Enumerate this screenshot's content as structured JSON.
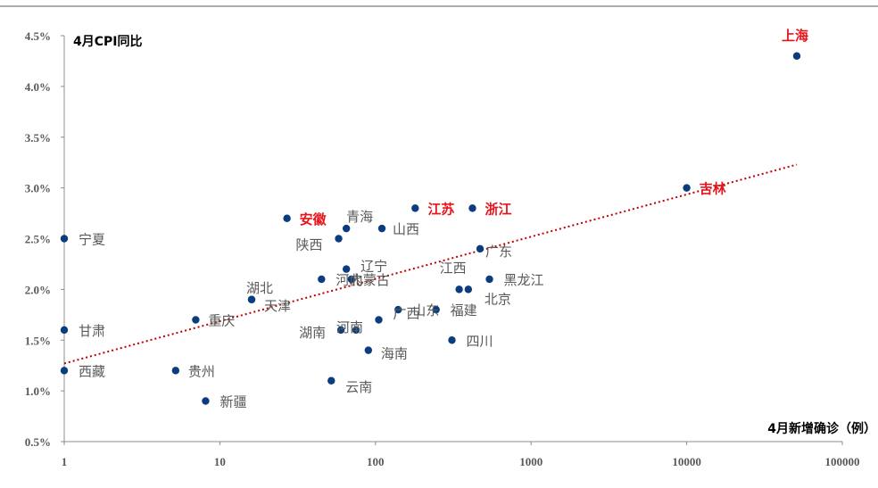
{
  "chart_data": {
    "type": "scatter",
    "title": "",
    "title_partial": "",
    "xlabel": "4月新增确诊（例）",
    "ylabel": "4月CPI同比",
    "x_scale": "log",
    "xlim": [
      1,
      100000
    ],
    "ylim": [
      0.005,
      0.045
    ],
    "x_ticks": [
      1,
      10,
      100,
      1000,
      10000,
      100000
    ],
    "x_tick_labels": [
      "1",
      "10",
      "100",
      "1000",
      "10000",
      "100000"
    ],
    "y_ticks": [
      0.005,
      0.01,
      0.015,
      0.02,
      0.025,
      0.03,
      0.035,
      0.04,
      0.045
    ],
    "y_tick_labels": [
      "0.5%",
      "1.0%",
      "1.5%",
      "2.0%",
      "2.5%",
      "3.0%",
      "3.5%",
      "4.0%",
      "4.5%"
    ],
    "grid": false,
    "marker_color": "#0b3d7e",
    "trendline": {
      "type": "log-linear",
      "style": "dotted",
      "color": "#c00000",
      "x_range": [
        1,
        51000
      ],
      "y_at_start": 0.0127,
      "y_at_end": 0.0323
    },
    "points": [
      {
        "label": "上海",
        "x": 51000,
        "y": 0.043,
        "highlight": true
      },
      {
        "label": "吉林",
        "x": 10000,
        "y": 0.03,
        "highlight": true
      },
      {
        "label": "浙江",
        "x": 420,
        "y": 0.028,
        "highlight": true
      },
      {
        "label": "江苏",
        "x": 180,
        "y": 0.028,
        "highlight": true
      },
      {
        "label": "安徽",
        "x": 27,
        "y": 0.027,
        "highlight": true
      },
      {
        "label": "青海",
        "x": 65,
        "y": 0.026,
        "highlight": false
      },
      {
        "label": "山西",
        "x": 110,
        "y": 0.026,
        "highlight": false
      },
      {
        "label": "陕西",
        "x": 58,
        "y": 0.025,
        "highlight": false
      },
      {
        "label": "宁夏",
        "x": 1,
        "y": 0.025,
        "highlight": false
      },
      {
        "label": "广东",
        "x": 470,
        "y": 0.024,
        "highlight": false
      },
      {
        "label": "辽宁",
        "x": 65,
        "y": 0.022,
        "highlight": false
      },
      {
        "label": "河北",
        "x": 45,
        "y": 0.021,
        "highlight": false
      },
      {
        "label": "内蒙古",
        "x": 70,
        "y": 0.021,
        "highlight": false
      },
      {
        "label": "黑龙江",
        "x": 540,
        "y": 0.021,
        "highlight": false
      },
      {
        "label": "江西",
        "x": 345,
        "y": 0.02,
        "highlight": false
      },
      {
        "label": "北京",
        "x": 395,
        "y": 0.02,
        "highlight": false
      },
      {
        "label": "湖北",
        "x": 16,
        "y": 0.019,
        "highlight": false
      },
      {
        "label": "天津",
        "x": 16,
        "y": 0.019,
        "highlight": false
      },
      {
        "label": "山东",
        "x": 140,
        "y": 0.018,
        "highlight": false
      },
      {
        "label": "福建",
        "x": 245,
        "y": 0.018,
        "highlight": false
      },
      {
        "label": "重庆",
        "x": 7,
        "y": 0.017,
        "highlight": false
      },
      {
        "label": "广西",
        "x": 105,
        "y": 0.017,
        "highlight": false
      },
      {
        "label": "湖南",
        "x": 60,
        "y": 0.016,
        "highlight": false
      },
      {
        "label": "河南",
        "x": 75,
        "y": 0.016,
        "highlight": false
      },
      {
        "label": "甘肃",
        "x": 1,
        "y": 0.016,
        "highlight": false
      },
      {
        "label": "四川",
        "x": 310,
        "y": 0.015,
        "highlight": false
      },
      {
        "label": "海南",
        "x": 90,
        "y": 0.014,
        "highlight": false
      },
      {
        "label": "西藏",
        "x": 1,
        "y": 0.012,
        "highlight": false
      },
      {
        "label": "贵州",
        "x": 5.2,
        "y": 0.012,
        "highlight": false
      },
      {
        "label": "云南",
        "x": 52,
        "y": 0.011,
        "highlight": false
      },
      {
        "label": "新疆",
        "x": 8.1,
        "y": 0.009,
        "highlight": false
      }
    ]
  },
  "colors": {
    "marker": "#0b3d7e",
    "highlight_label": "#e8141b",
    "normal_label": "#595959",
    "axis": "#8c8c8c",
    "trend": "#c00000"
  }
}
